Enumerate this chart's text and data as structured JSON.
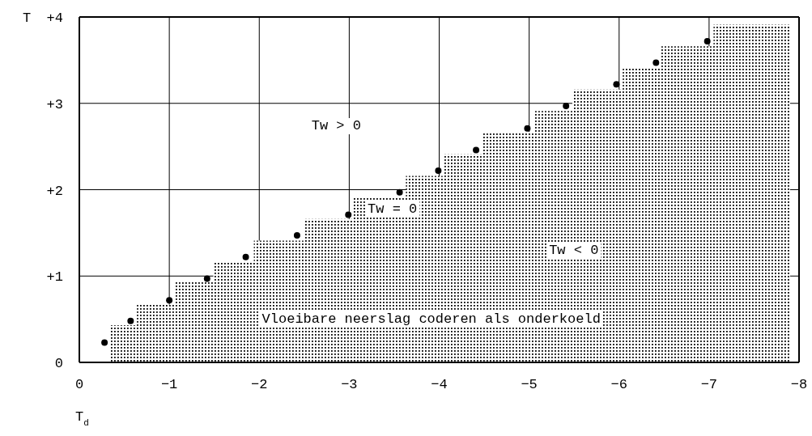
{
  "chart_data": {
    "type": "scatter",
    "xlabel": "T$_{d}$",
    "ylabel": "T",
    "xlim": [
      0,
      -8
    ],
    "ylim": [
      0,
      4
    ],
    "xticks": [
      0,
      -1,
      -2,
      -3,
      -4,
      -5,
      -6,
      -7,
      -8
    ],
    "yticks": [
      {
        "value": 0,
        "label": "0"
      },
      {
        "value": 1,
        "label": "+1"
      },
      {
        "value": 2,
        "label": "+2"
      },
      {
        "value": 3,
        "label": "+3"
      },
      {
        "value": 4,
        "label": "+4"
      }
    ],
    "grid": true,
    "series": [
      {
        "type": "area",
        "color": "#000000",
        "x": [
          -0.35,
          -0.64,
          -1.06,
          -1.49,
          -1.94,
          -2.5,
          -3.05,
          -3.63,
          -4.05,
          -4.49,
          -5.06,
          -5.48,
          -6.04,
          -6.47,
          -7.05,
          -7.9
        ],
        "values": [
          0.43,
          0.67,
          0.93,
          1.17,
          1.41,
          1.66,
          1.91,
          2.16,
          2.41,
          2.67,
          2.91,
          3.16,
          3.41,
          3.66,
          3.91,
          3.91
        ]
      },
      {
        "color": "#000000",
        "marker": "circle",
        "x": [
          -0.28,
          -0.57,
          -1.0,
          -1.42,
          -1.85,
          -2.42,
          -2.99,
          -3.56,
          -3.99,
          -4.41,
          -4.98,
          -5.41,
          -5.97,
          -6.41,
          -6.98
        ],
        "values": [
          0.23,
          0.48,
          0.72,
          0.97,
          1.22,
          1.47,
          1.71,
          1.97,
          2.22,
          2.46,
          2.71,
          2.97,
          3.22,
          3.47,
          3.72
        ]
      }
    ],
    "annotations": [
      "Tw > 0",
      "Tw = 0",
      "Tw < 0",
      "Vloeibare neerslag coderen als onderkoeld"
    ]
  }
}
